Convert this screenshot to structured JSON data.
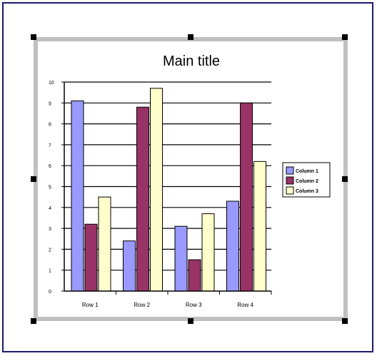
{
  "chart_data": {
    "type": "bar",
    "title": "Main title",
    "categories": [
      "Row 1",
      "Row 2",
      "Row 3",
      "Row 4"
    ],
    "series": [
      {
        "name": "Column 1",
        "values": [
          9.1,
          2.4,
          3.1,
          4.3
        ],
        "color": "#9999ff"
      },
      {
        "name": "Column 2",
        "values": [
          3.2,
          8.8,
          1.5,
          9.0
        ],
        "color": "#993366"
      },
      {
        "name": "Column 3",
        "values": [
          4.5,
          9.7,
          3.7,
          6.2
        ],
        "color": "#ffffcc"
      }
    ],
    "ylim": [
      0,
      10
    ],
    "yticks": [
      "0",
      "1",
      "2",
      "3",
      "4",
      "5",
      "6",
      "7",
      "8",
      "9",
      "10"
    ],
    "grid": true,
    "legend": "right"
  }
}
